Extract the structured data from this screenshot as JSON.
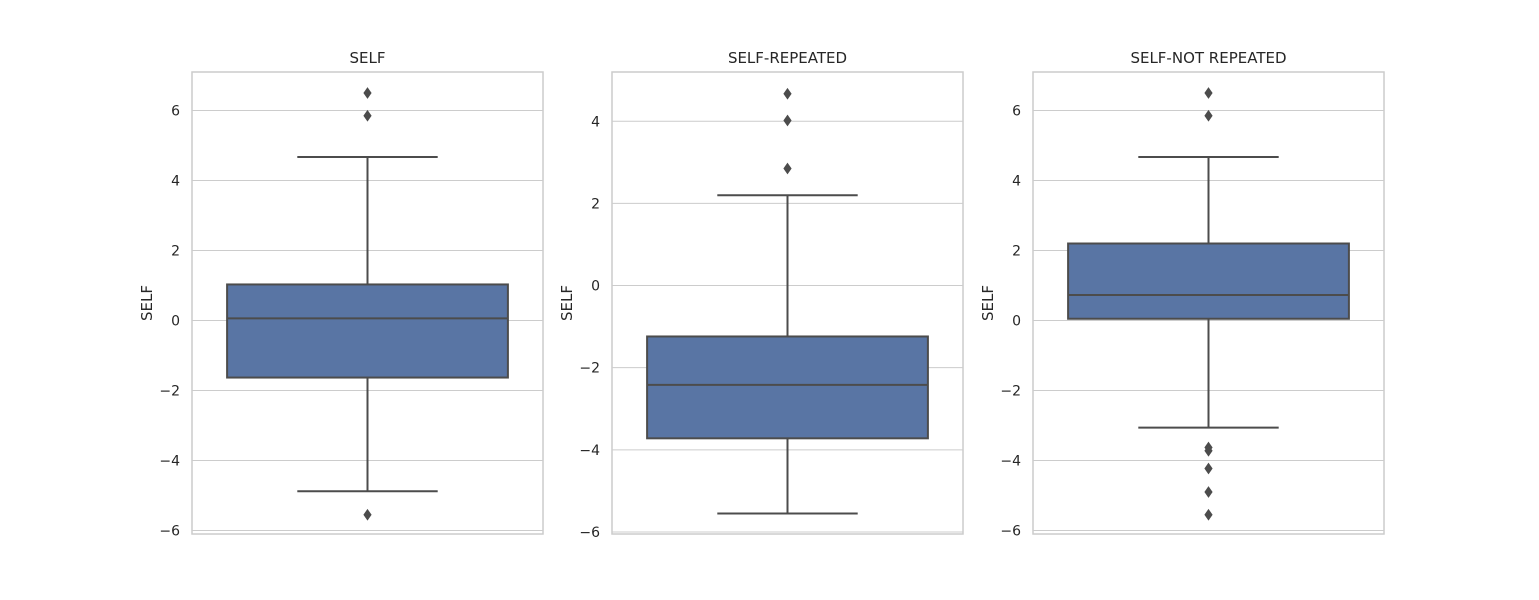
{
  "chart_data": [
    {
      "type": "box",
      "title": "SELF",
      "ylabel": "SELF",
      "ylim": [
        -6.1,
        7.1
      ],
      "yticks": [
        6,
        4,
        2,
        0,
        -2,
        -4,
        -6
      ],
      "ytick_labels": [
        "6",
        "4",
        "2",
        "0",
        "−2",
        "−4",
        "−6"
      ],
      "grid": true,
      "box": {
        "q1": -1.63,
        "median": 0.06,
        "q3": 1.03,
        "whisker_low": -4.88,
        "whisker_high": 4.67
      },
      "outliers": [
        6.5,
        5.85,
        -5.55
      ]
    },
    {
      "type": "box",
      "title": "SELF-REPEATED",
      "ylabel": "SELF",
      "ylim": [
        -6.05,
        5.2
      ],
      "yticks": [
        4,
        2,
        0,
        -2,
        -4,
        -6
      ],
      "ytick_labels": [
        "4",
        "2",
        "0",
        "−2",
        "−4",
        "−6"
      ],
      "grid": true,
      "box": {
        "q1": -3.72,
        "median": -2.42,
        "q3": -1.24,
        "whisker_low": -5.55,
        "whisker_high": 2.2
      },
      "outliers": [
        4.67,
        4.02,
        2.85
      ]
    },
    {
      "type": "box",
      "title": "SELF-NOT REPEATED",
      "ylabel": "SELF",
      "ylim": [
        -6.1,
        7.1
      ],
      "yticks": [
        6,
        4,
        2,
        0,
        -2,
        -4,
        -6
      ],
      "ytick_labels": [
        "6",
        "4",
        "2",
        "0",
        "−2",
        "−4",
        "−6"
      ],
      "grid": true,
      "box": {
        "q1": 0.05,
        "median": 0.73,
        "q3": 2.2,
        "whisker_low": -3.06,
        "whisker_high": 4.67
      },
      "outliers": [
        6.5,
        5.85,
        -3.63,
        -3.72,
        -4.23,
        -4.9,
        -5.55
      ]
    }
  ],
  "colors": {
    "box_fill": "#5975a4",
    "box_edge": "#4c4c4c",
    "grid": "#cccccc",
    "spine": "#cccccc",
    "outlier": "#4c4c4c"
  }
}
